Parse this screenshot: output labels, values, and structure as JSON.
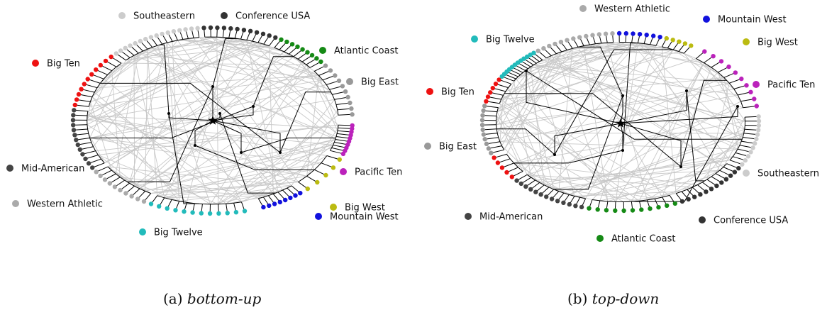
{
  "panels": [
    {
      "id": "a",
      "caption_label": "(a)",
      "caption_title": "bottom-up",
      "legend": [
        {
          "label": "Southeastern",
          "color": "#cccccc"
        },
        {
          "label": "Conference USA",
          "color": "#333333"
        },
        {
          "label": "Atlantic Coast",
          "color": "#158a15"
        },
        {
          "label": "Big East",
          "color": "#999999"
        },
        {
          "label": "Pacific Ten",
          "color": "#bb22bb"
        },
        {
          "label": "Big West",
          "color": "#bbbb11"
        },
        {
          "label": "Mountain West",
          "color": "#1111dd"
        },
        {
          "label": "Big Twelve",
          "color": "#22bbbb"
        },
        {
          "label": "Western Athletic",
          "color": "#aaaaaa"
        },
        {
          "label": "Mid-American",
          "color": "#444444"
        },
        {
          "label": "Big Ten",
          "color": "#ee1111"
        }
      ]
    },
    {
      "id": "b",
      "caption_label": "(b)",
      "caption_title": "top-down",
      "legend": [
        {
          "label": "Western Athletic",
          "color": "#aaaaaa"
        },
        {
          "label": "Mountain West",
          "color": "#1111dd"
        },
        {
          "label": "Big West",
          "color": "#bbbb11"
        },
        {
          "label": "Big Twelve",
          "color": "#22bbbb"
        },
        {
          "label": "Pacific Ten",
          "color": "#bb22bb"
        },
        {
          "label": "Big Ten",
          "color": "#ee1111"
        },
        {
          "label": "Big East",
          "color": "#999999"
        },
        {
          "label": "Southeastern",
          "color": "#cccccc"
        },
        {
          "label": "Conference USA",
          "color": "#333333"
        },
        {
          "label": "Mid-American",
          "color": "#444444"
        },
        {
          "label": "Atlantic Coast",
          "color": "#158a15"
        }
      ]
    }
  ]
}
